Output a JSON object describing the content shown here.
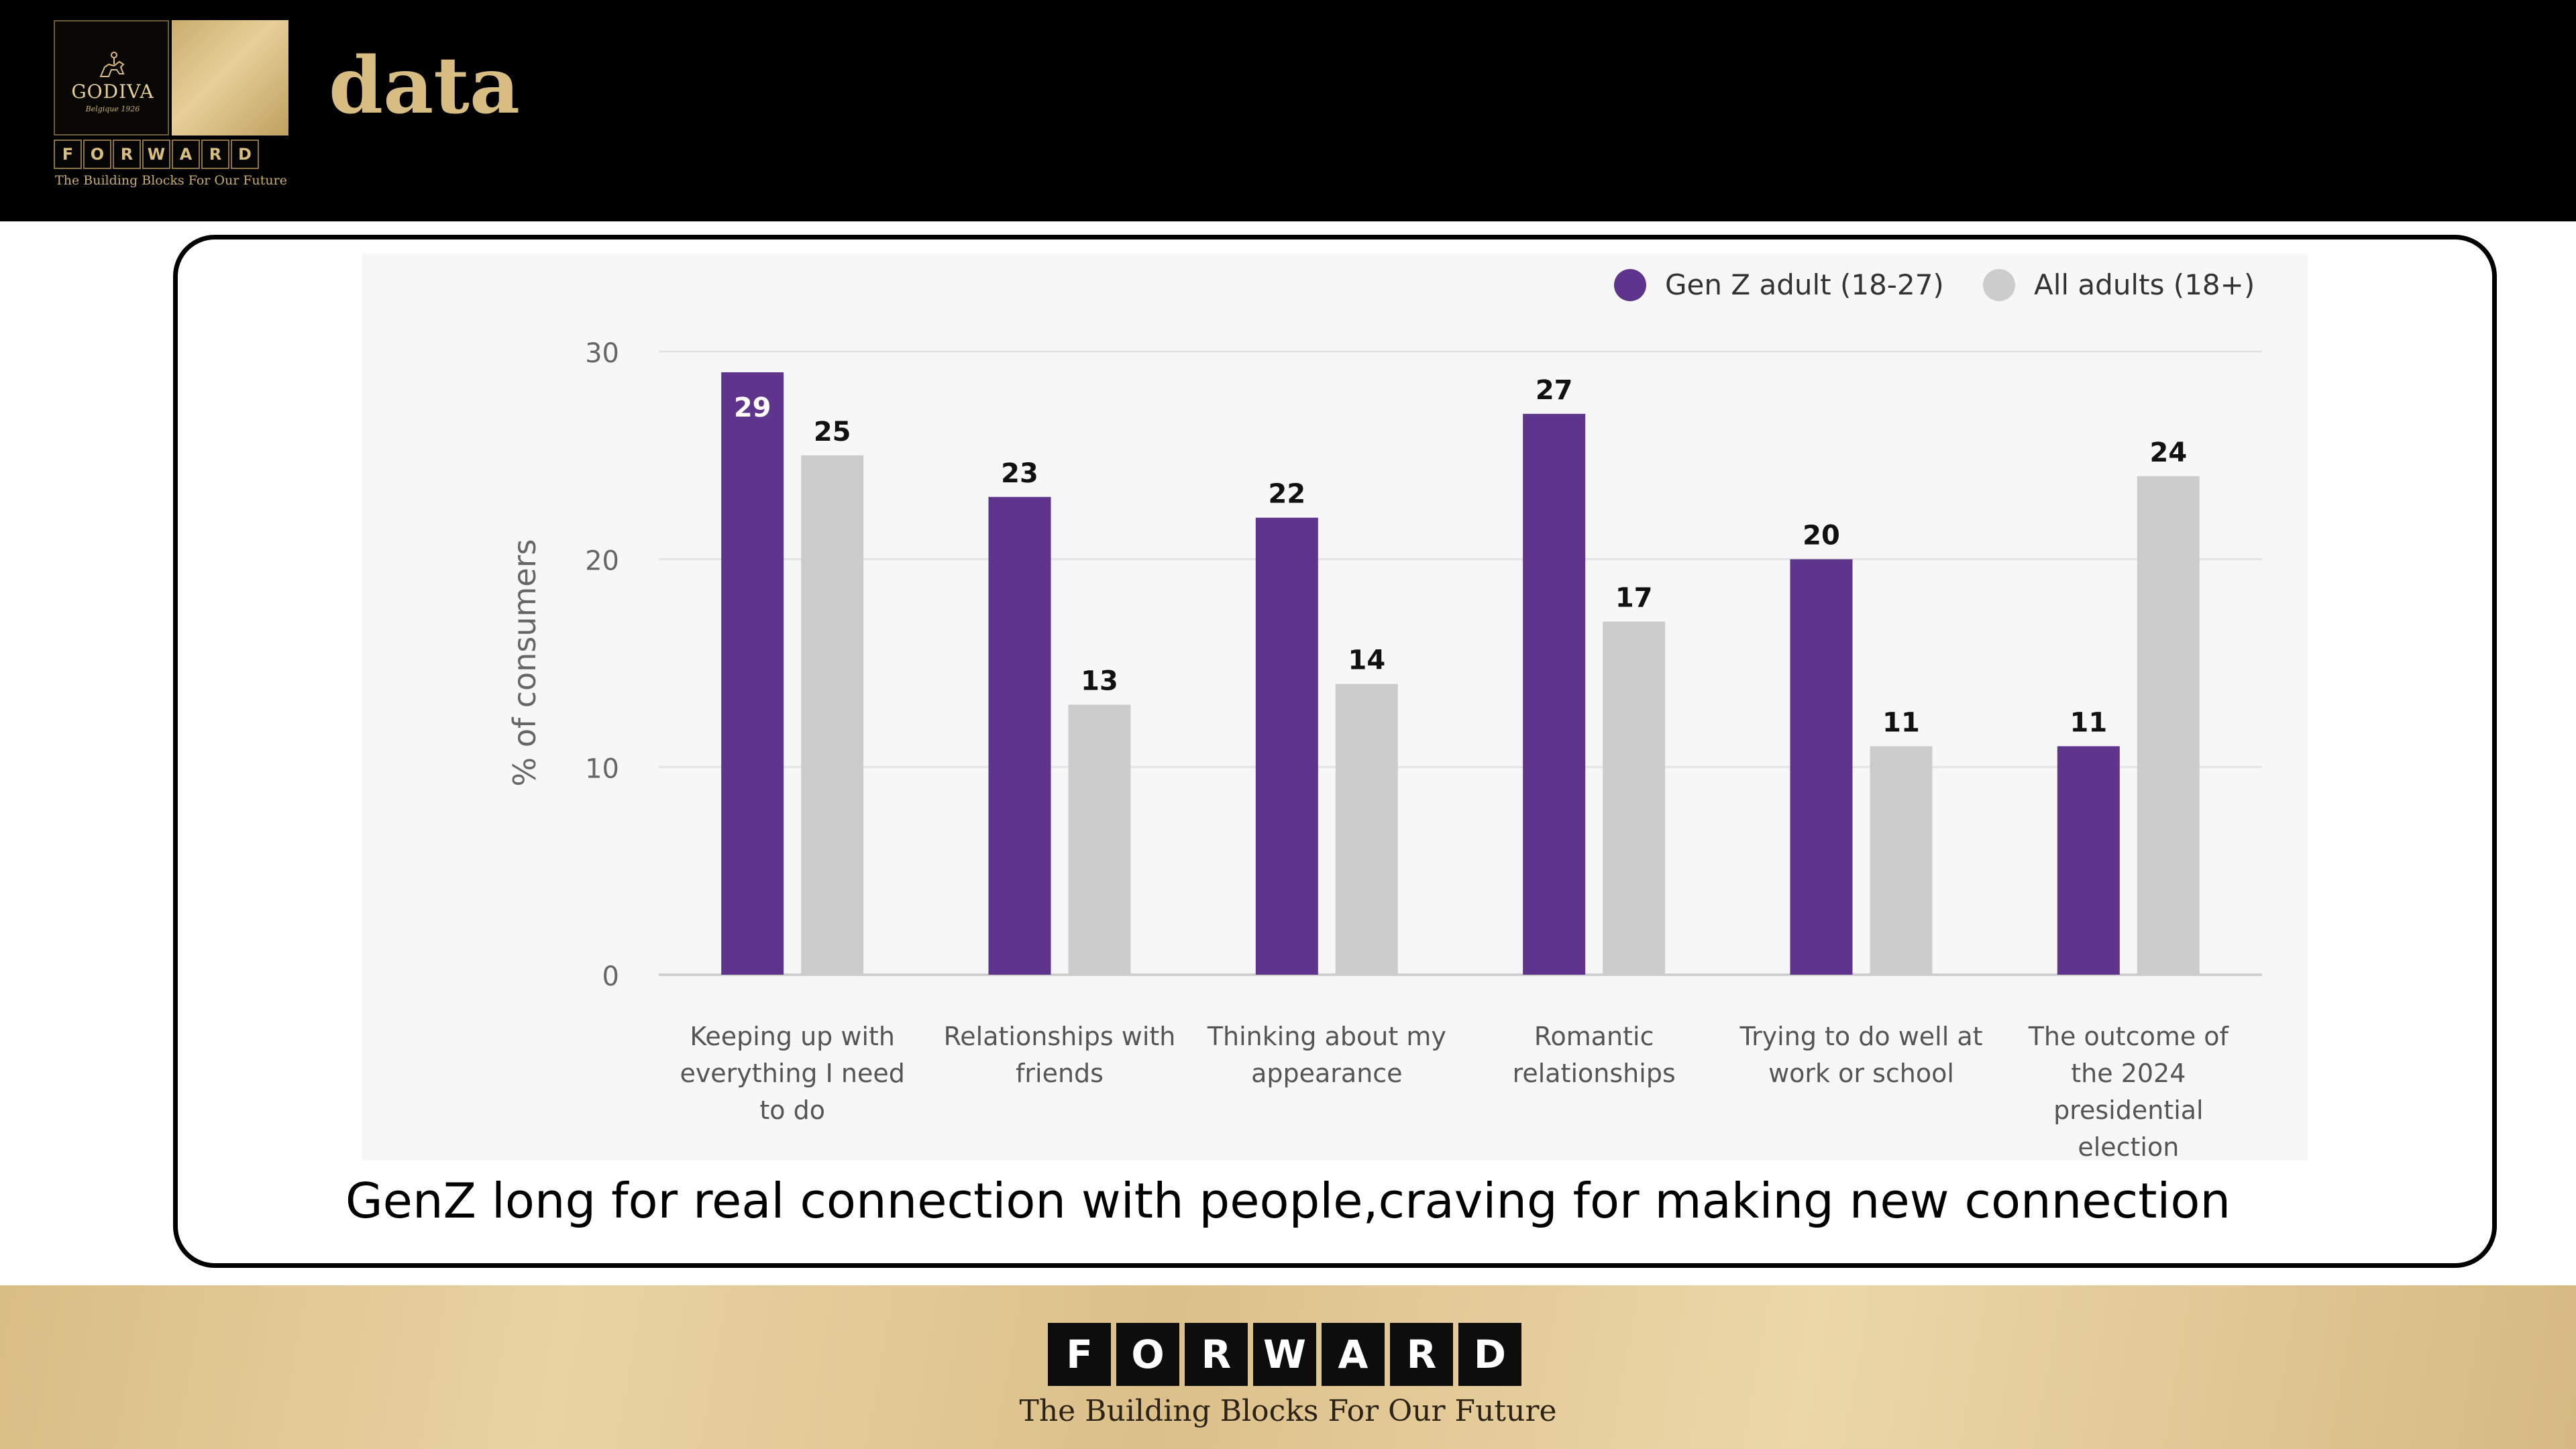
{
  "header": {
    "title": "data",
    "logo": {
      "brand": "GODIVA",
      "tagline": "Belgique 1926",
      "word_letters": [
        "F",
        "O",
        "R",
        "W",
        "A",
        "R",
        "D"
      ],
      "subtitle": "The Building Blocks For Our Future"
    }
  },
  "caption": "GenZ long for real connection with people,craving for making new connection",
  "footer": {
    "word_letters": [
      "F",
      "O",
      "R",
      "W",
      "A",
      "R",
      "D"
    ],
    "subtitle": "The Building Blocks For Our Future"
  },
  "colors": {
    "genz": "#5e348c",
    "all_adults": "#cccccc",
    "gold": "#d8bd82",
    "panel": "#f7f7f7"
  },
  "chart_data": {
    "type": "bar",
    "ylabel": "% of consumers",
    "ylim": [
      0,
      30
    ],
    "yticks": [
      0,
      10,
      20,
      30
    ],
    "grid": true,
    "legend_position": "top-right",
    "categories": [
      [
        "Keeping up with",
        "everything I need",
        "to do"
      ],
      [
        "Relationships with",
        "friends"
      ],
      [
        "Thinking about my",
        "appearance"
      ],
      [
        "Romantic",
        "relationships"
      ],
      [
        "Trying to do well at",
        "work or school"
      ],
      [
        "The outcome of",
        "the 2024",
        "presidential",
        "election"
      ]
    ],
    "series": [
      {
        "name": "Gen Z adult (18-27)",
        "color": "#5e348c",
        "values": [
          29,
          23,
          22,
          27,
          20,
          11
        ]
      },
      {
        "name": "All adults (18+)",
        "color": "#cccccc",
        "values": [
          25,
          13,
          14,
          17,
          11,
          24
        ]
      }
    ]
  }
}
